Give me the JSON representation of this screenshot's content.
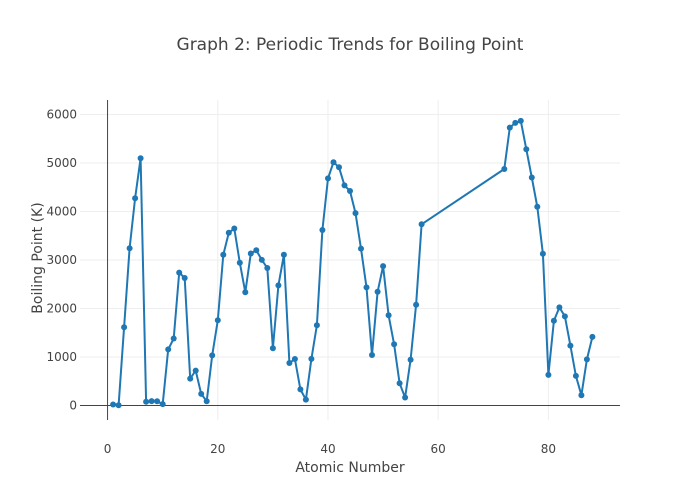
{
  "chart_data": {
    "type": "line",
    "title": "Graph 2: Periodic Trends for Boiling Point",
    "xlabel": "Atomic Number",
    "ylabel": "Boiling Point (K)",
    "xlim": [
      -5,
      93
    ],
    "ylim": [
      -300,
      6300
    ],
    "xticks": [
      0,
      20,
      40,
      60,
      80
    ],
    "yticks": [
      0,
      1000,
      2000,
      3000,
      4000,
      5000,
      6000
    ],
    "grid": true,
    "legend": "none",
    "color": "#1f77b4",
    "series": [
      {
        "x": [
          1,
          2,
          3,
          4,
          5,
          6,
          7,
          8,
          9,
          10,
          11,
          12,
          13,
          14,
          15,
          16,
          17,
          18,
          19,
          20,
          21,
          22,
          23,
          24,
          25,
          26,
          27,
          28,
          29,
          30,
          31,
          32,
          33,
          34,
          35,
          36,
          37,
          38,
          39,
          40,
          41,
          42,
          43,
          44,
          45,
          46,
          47,
          48,
          49,
          50,
          51,
          52,
          53,
          54,
          55,
          56,
          57,
          72,
          73,
          74,
          75,
          76,
          77,
          78,
          79,
          80,
          81,
          82,
          83,
          84,
          85,
          86,
          87,
          88
        ],
        "y": [
          20,
          4,
          1615,
          3243,
          4273,
          5100,
          77,
          90,
          85,
          27,
          1156,
          1380,
          2740,
          2628,
          553,
          718,
          239,
          87,
          1032,
          1757,
          3109,
          3560,
          3650,
          2944,
          2334,
          3134,
          3200,
          3003,
          2835,
          1180,
          2477,
          3107,
          876,
          958,
          332,
          120,
          961,
          1655,
          3618,
          4682,
          5017,
          4912,
          4538,
          4423,
          3968,
          3236,
          2435,
          1040,
          2345,
          2875,
          1860,
          1261,
          457,
          165,
          944,
          2078,
          3737,
          4876,
          5731,
          5828,
          5869,
          5285,
          4701,
          4098,
          3129,
          630,
          1746,
          2022,
          1837,
          1235,
          610,
          211,
          950,
          1413
        ]
      }
    ]
  }
}
